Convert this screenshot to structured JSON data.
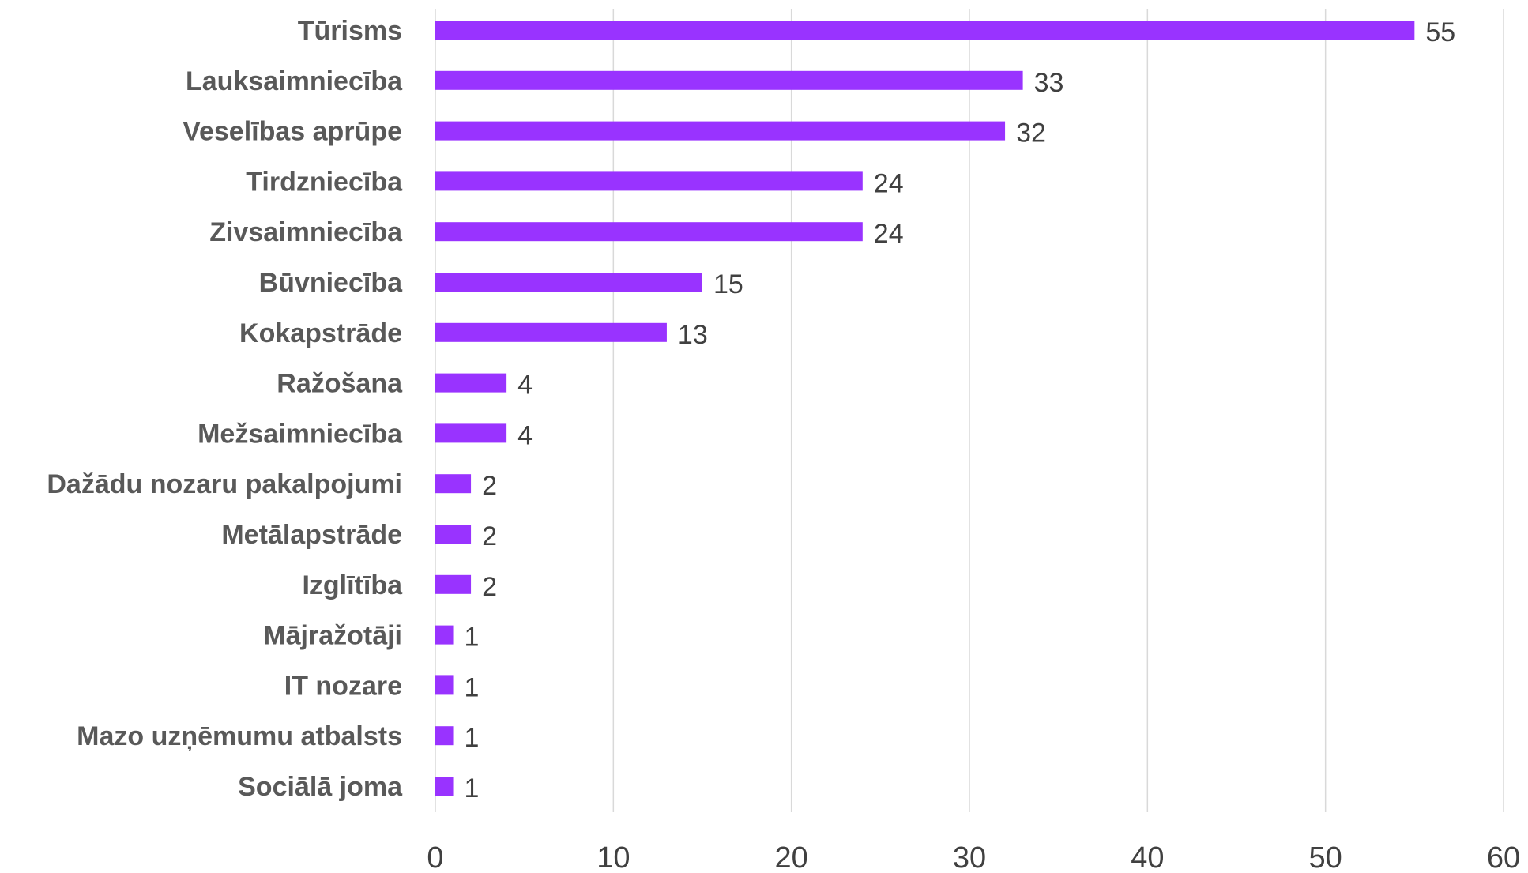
{
  "chart_data": {
    "type": "bar",
    "orientation": "horizontal",
    "title": "",
    "xlabel": "",
    "ylabel": "",
    "categories": [
      "Tūrisms",
      "Lauksaimniecība",
      "Veselības aprūpe",
      "Tirdzniecība",
      "Zivsaimniecība",
      "Būvniecība",
      "Kokapstrāde",
      "Ražošana",
      "Mežsaimniecība",
      "Dažādu nozaru pakalpojumi",
      "Metālapstrāde",
      "Izglītība",
      "Mājražotāji",
      "IT nozare",
      "Mazo uzņēmumu atbalsts",
      "Sociālā joma"
    ],
    "values": [
      55,
      33,
      32,
      24,
      24,
      15,
      13,
      4,
      4,
      2,
      2,
      2,
      1,
      1,
      1,
      1
    ],
    "xlim": [
      0,
      60
    ],
    "xticks": [
      0,
      10,
      20,
      30,
      40,
      50,
      60
    ],
    "grid": true,
    "legend": "none",
    "data_labels": true,
    "colors": {
      "bar": "#9933ff",
      "grid": "#d9d9d9",
      "category_text": "#595959",
      "value_text": "#404040"
    }
  }
}
